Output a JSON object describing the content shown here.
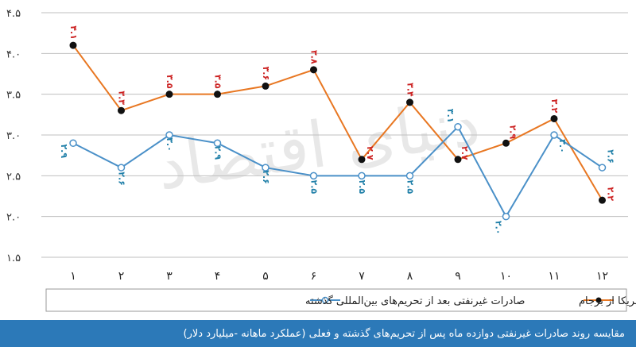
{
  "chart_data": {
    "type": "line",
    "categories": [
      "۱",
      "۲",
      "۳",
      "۴",
      "۵",
      "۶",
      "۷",
      "۸",
      "۹",
      "۱۰",
      "۱۱",
      "۱۲"
    ],
    "x": [
      1,
      2,
      3,
      4,
      5,
      6,
      7,
      8,
      9,
      10,
      11,
      12
    ],
    "ylim": [
      1.5,
      4.5
    ],
    "yticks": [
      1.5,
      2.0,
      2.5,
      3.0,
      3.5,
      4.0,
      4.5
    ],
    "ytick_labels": [
      "۱.۵",
      "۲.۰",
      "۲.۵",
      "۳.۰",
      "۳.۵",
      "۴.۰",
      "۴.۵"
    ],
    "grid": "horizontal",
    "legend_position": "bottom",
    "series": [
      {
        "name": "صادرات غیرنفتی بعد از خروج آمریکا از برجام",
        "color": "#e87722",
        "marker_color": "#111111",
        "values": [
          4.1,
          3.3,
          3.5,
          3.5,
          3.6,
          3.8,
          2.7,
          3.4,
          2.7,
          2.9,
          3.2,
          2.2
        ],
        "labels": [
          "۴.۱",
          "۳.۳",
          "۳.۵",
          "۳.۵",
          "۳.۶",
          "۳.۸",
          "۲.۷",
          "۳.۴",
          "۲.۷",
          "۲.۹",
          "۳.۲",
          "۲.۲"
        ]
      },
      {
        "name": "صادرات غیرنفتی بعد از تحریم‌های بین‌المللی گذشته",
        "color": "#4a90c8",
        "marker_color": "#ffffff",
        "values": [
          2.9,
          2.6,
          3.0,
          2.9,
          2.6,
          2.5,
          2.5,
          2.5,
          3.1,
          2.0,
          3.0,
          2.6
        ],
        "labels": [
          "۲.۹",
          "۲.۶",
          "۳.۰",
          "۲.۹",
          "۲.۶",
          "۲.۵",
          "۲.۵",
          "۲.۵",
          "۳.۱",
          "۲.۰",
          "۳.۰",
          "۲.۶"
        ]
      }
    ]
  },
  "caption": "مقایسه روند صادرات غیرنفتی دوازده ماه پس از تحریم‌های گذشته و فعلی (عملکرد ماهانه -میلیارد دلار)",
  "watermark": "دنیای اقتصاد"
}
